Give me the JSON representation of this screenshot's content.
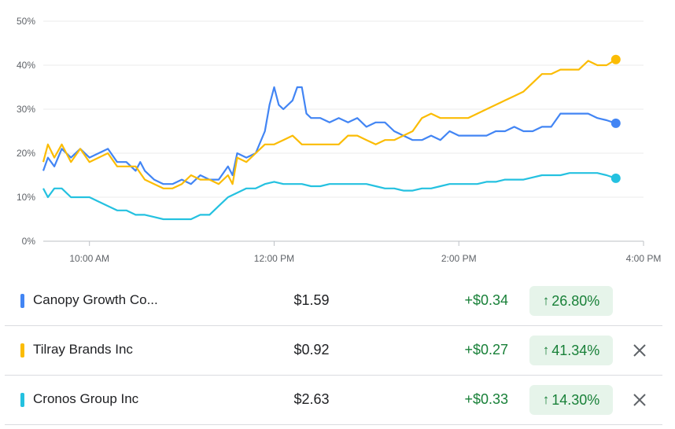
{
  "chart_data": {
    "type": "line",
    "yticks": [
      "0%",
      "10%",
      "20%",
      "30%",
      "40%",
      "50%"
    ],
    "ylim": [
      0,
      50
    ],
    "xticks": [
      {
        "label": "10:00 AM",
        "t": 10.0
      },
      {
        "label": "12:00 PM",
        "t": 12.0
      },
      {
        "label": "2:00 PM",
        "t": 14.0
      },
      {
        "label": "4:00 PM",
        "t": 16.0
      }
    ],
    "xlim": [
      9.5,
      16.0
    ],
    "grid": true,
    "series": [
      {
        "name": "Canopy Growth Co...",
        "color": "#4285f4",
        "points": [
          [
            9.5,
            16
          ],
          [
            9.55,
            19
          ],
          [
            9.62,
            17
          ],
          [
            9.7,
            21
          ],
          [
            9.8,
            19
          ],
          [
            9.9,
            21
          ],
          [
            10.0,
            19
          ],
          [
            10.1,
            20
          ],
          [
            10.2,
            21
          ],
          [
            10.3,
            18
          ],
          [
            10.4,
            18
          ],
          [
            10.5,
            16
          ],
          [
            10.55,
            18
          ],
          [
            10.6,
            16
          ],
          [
            10.7,
            14
          ],
          [
            10.8,
            13
          ],
          [
            10.9,
            13
          ],
          [
            11.0,
            14
          ],
          [
            11.1,
            13
          ],
          [
            11.2,
            15
          ],
          [
            11.3,
            14
          ],
          [
            11.4,
            14
          ],
          [
            11.5,
            17
          ],
          [
            11.55,
            15
          ],
          [
            11.6,
            20
          ],
          [
            11.7,
            19
          ],
          [
            11.8,
            20
          ],
          [
            11.9,
            25
          ],
          [
            11.95,
            31
          ],
          [
            12.0,
            35
          ],
          [
            12.05,
            31
          ],
          [
            12.1,
            30
          ],
          [
            12.2,
            32
          ],
          [
            12.25,
            35
          ],
          [
            12.3,
            35
          ],
          [
            12.35,
            29
          ],
          [
            12.4,
            28
          ],
          [
            12.5,
            28
          ],
          [
            12.6,
            27
          ],
          [
            12.7,
            28
          ],
          [
            12.8,
            27
          ],
          [
            12.9,
            28
          ],
          [
            13.0,
            26
          ],
          [
            13.1,
            27
          ],
          [
            13.2,
            27
          ],
          [
            13.3,
            25
          ],
          [
            13.4,
            24
          ],
          [
            13.5,
            23
          ],
          [
            13.6,
            23
          ],
          [
            13.7,
            24
          ],
          [
            13.8,
            23
          ],
          [
            13.9,
            25
          ],
          [
            14.0,
            24
          ],
          [
            14.1,
            24
          ],
          [
            14.2,
            24
          ],
          [
            14.3,
            24
          ],
          [
            14.4,
            25
          ],
          [
            14.5,
            25
          ],
          [
            14.6,
            26
          ],
          [
            14.7,
            25
          ],
          [
            14.8,
            25
          ],
          [
            14.9,
            26
          ],
          [
            15.0,
            26
          ],
          [
            15.1,
            29
          ],
          [
            15.2,
            29
          ],
          [
            15.3,
            29
          ],
          [
            15.4,
            29
          ],
          [
            15.5,
            28
          ],
          [
            15.6,
            27.5
          ],
          [
            15.7,
            26.8
          ]
        ]
      },
      {
        "name": "Tilray Brands Inc",
        "color": "#fbbc04",
        "points": [
          [
            9.5,
            18
          ],
          [
            9.55,
            22
          ],
          [
            9.62,
            19
          ],
          [
            9.7,
            22
          ],
          [
            9.8,
            18
          ],
          [
            9.9,
            21
          ],
          [
            10.0,
            18
          ],
          [
            10.1,
            19
          ],
          [
            10.2,
            20
          ],
          [
            10.3,
            17
          ],
          [
            10.4,
            17
          ],
          [
            10.5,
            17
          ],
          [
            10.6,
            14
          ],
          [
            10.7,
            13
          ],
          [
            10.8,
            12
          ],
          [
            10.9,
            12
          ],
          [
            11.0,
            13
          ],
          [
            11.1,
            15
          ],
          [
            11.2,
            14
          ],
          [
            11.3,
            14
          ],
          [
            11.4,
            13
          ],
          [
            11.5,
            15
          ],
          [
            11.55,
            13
          ],
          [
            11.6,
            19
          ],
          [
            11.7,
            18
          ],
          [
            11.8,
            20
          ],
          [
            11.9,
            22
          ],
          [
            12.0,
            22
          ],
          [
            12.1,
            23
          ],
          [
            12.2,
            24
          ],
          [
            12.3,
            22
          ],
          [
            12.4,
            22
          ],
          [
            12.5,
            22
          ],
          [
            12.6,
            22
          ],
          [
            12.7,
            22
          ],
          [
            12.8,
            24
          ],
          [
            12.9,
            24
          ],
          [
            13.0,
            23
          ],
          [
            13.1,
            22
          ],
          [
            13.2,
            23
          ],
          [
            13.3,
            23
          ],
          [
            13.4,
            24
          ],
          [
            13.5,
            25
          ],
          [
            13.6,
            28
          ],
          [
            13.7,
            29
          ],
          [
            13.8,
            28
          ],
          [
            13.9,
            28
          ],
          [
            14.0,
            28
          ],
          [
            14.1,
            28
          ],
          [
            14.2,
            29
          ],
          [
            14.3,
            30
          ],
          [
            14.4,
            31
          ],
          [
            14.5,
            32
          ],
          [
            14.6,
            33
          ],
          [
            14.7,
            34
          ],
          [
            14.8,
            36
          ],
          [
            14.9,
            38
          ],
          [
            15.0,
            38
          ],
          [
            15.1,
            39
          ],
          [
            15.2,
            39
          ],
          [
            15.3,
            39
          ],
          [
            15.4,
            41
          ],
          [
            15.5,
            40
          ],
          [
            15.6,
            40
          ],
          [
            15.7,
            41.3
          ]
        ]
      },
      {
        "name": "Cronos Group Inc",
        "color": "#24c1e0",
        "points": [
          [
            9.5,
            12
          ],
          [
            9.55,
            10
          ],
          [
            9.62,
            12
          ],
          [
            9.7,
            12
          ],
          [
            9.8,
            10
          ],
          [
            9.9,
            10
          ],
          [
            10.0,
            10
          ],
          [
            10.1,
            9
          ],
          [
            10.2,
            8
          ],
          [
            10.3,
            7
          ],
          [
            10.4,
            7
          ],
          [
            10.5,
            6
          ],
          [
            10.6,
            6
          ],
          [
            10.7,
            5.5
          ],
          [
            10.8,
            5
          ],
          [
            10.9,
            5
          ],
          [
            11.0,
            5
          ],
          [
            11.1,
            5
          ],
          [
            11.2,
            6
          ],
          [
            11.3,
            6
          ],
          [
            11.4,
            8
          ],
          [
            11.5,
            10
          ],
          [
            11.6,
            11
          ],
          [
            11.7,
            12
          ],
          [
            11.8,
            12
          ],
          [
            11.9,
            13
          ],
          [
            12.0,
            13.5
          ],
          [
            12.1,
            13
          ],
          [
            12.2,
            13
          ],
          [
            12.3,
            13
          ],
          [
            12.4,
            12.5
          ],
          [
            12.5,
            12.5
          ],
          [
            12.6,
            13
          ],
          [
            12.7,
            13
          ],
          [
            12.8,
            13
          ],
          [
            12.9,
            13
          ],
          [
            13.0,
            13
          ],
          [
            13.1,
            12.5
          ],
          [
            13.2,
            12
          ],
          [
            13.3,
            12
          ],
          [
            13.4,
            11.5
          ],
          [
            13.5,
            11.5
          ],
          [
            13.6,
            12
          ],
          [
            13.7,
            12
          ],
          [
            13.8,
            12.5
          ],
          [
            13.9,
            13
          ],
          [
            14.0,
            13
          ],
          [
            14.1,
            13
          ],
          [
            14.2,
            13
          ],
          [
            14.3,
            13.5
          ],
          [
            14.4,
            13.5
          ],
          [
            14.5,
            14
          ],
          [
            14.6,
            14
          ],
          [
            14.7,
            14
          ],
          [
            14.8,
            14.5
          ],
          [
            14.9,
            15
          ],
          [
            15.0,
            15
          ],
          [
            15.1,
            15
          ],
          [
            15.2,
            15.5
          ],
          [
            15.3,
            15.5
          ],
          [
            15.4,
            15.5
          ],
          [
            15.5,
            15.5
          ],
          [
            15.6,
            15
          ],
          [
            15.7,
            14.3
          ]
        ]
      }
    ]
  },
  "stocks": [
    {
      "name": "Canopy Growth Co...",
      "price": "$1.59",
      "change": "+$0.34",
      "pct": "26.80%",
      "color": "#4285f4",
      "removable": false
    },
    {
      "name": "Tilray Brands Inc",
      "price": "$0.92",
      "change": "+$0.27",
      "pct": "41.34%",
      "color": "#fbbc04",
      "removable": true
    },
    {
      "name": "Cronos Group Inc",
      "price": "$2.63",
      "change": "+$0.33",
      "pct": "14.30%",
      "color": "#24c1e0",
      "removable": true
    }
  ],
  "icons": {
    "up": "arrow-up-icon",
    "remove": "close-icon"
  }
}
